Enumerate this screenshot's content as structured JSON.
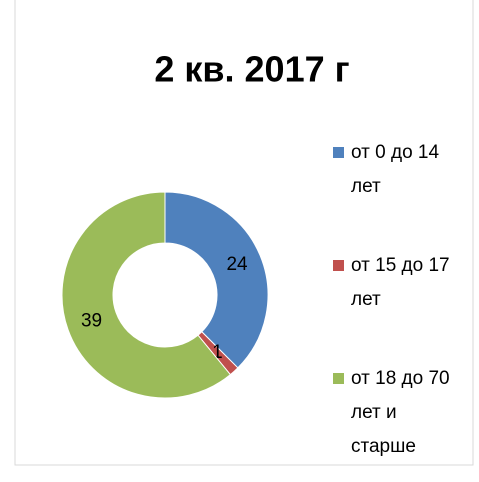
{
  "chart_data": {
    "type": "doughnut",
    "title": "2 кв. 2017 г",
    "categories": [
      "от 0 до 14 лет",
      "от 15 до 17 лет",
      "от 18 до 70 лет и старше"
    ],
    "values": [
      24,
      1,
      39
    ],
    "colors": [
      "#4f81bd",
      "#c0504d",
      "#9bbb59"
    ],
    "legend": "right"
  }
}
